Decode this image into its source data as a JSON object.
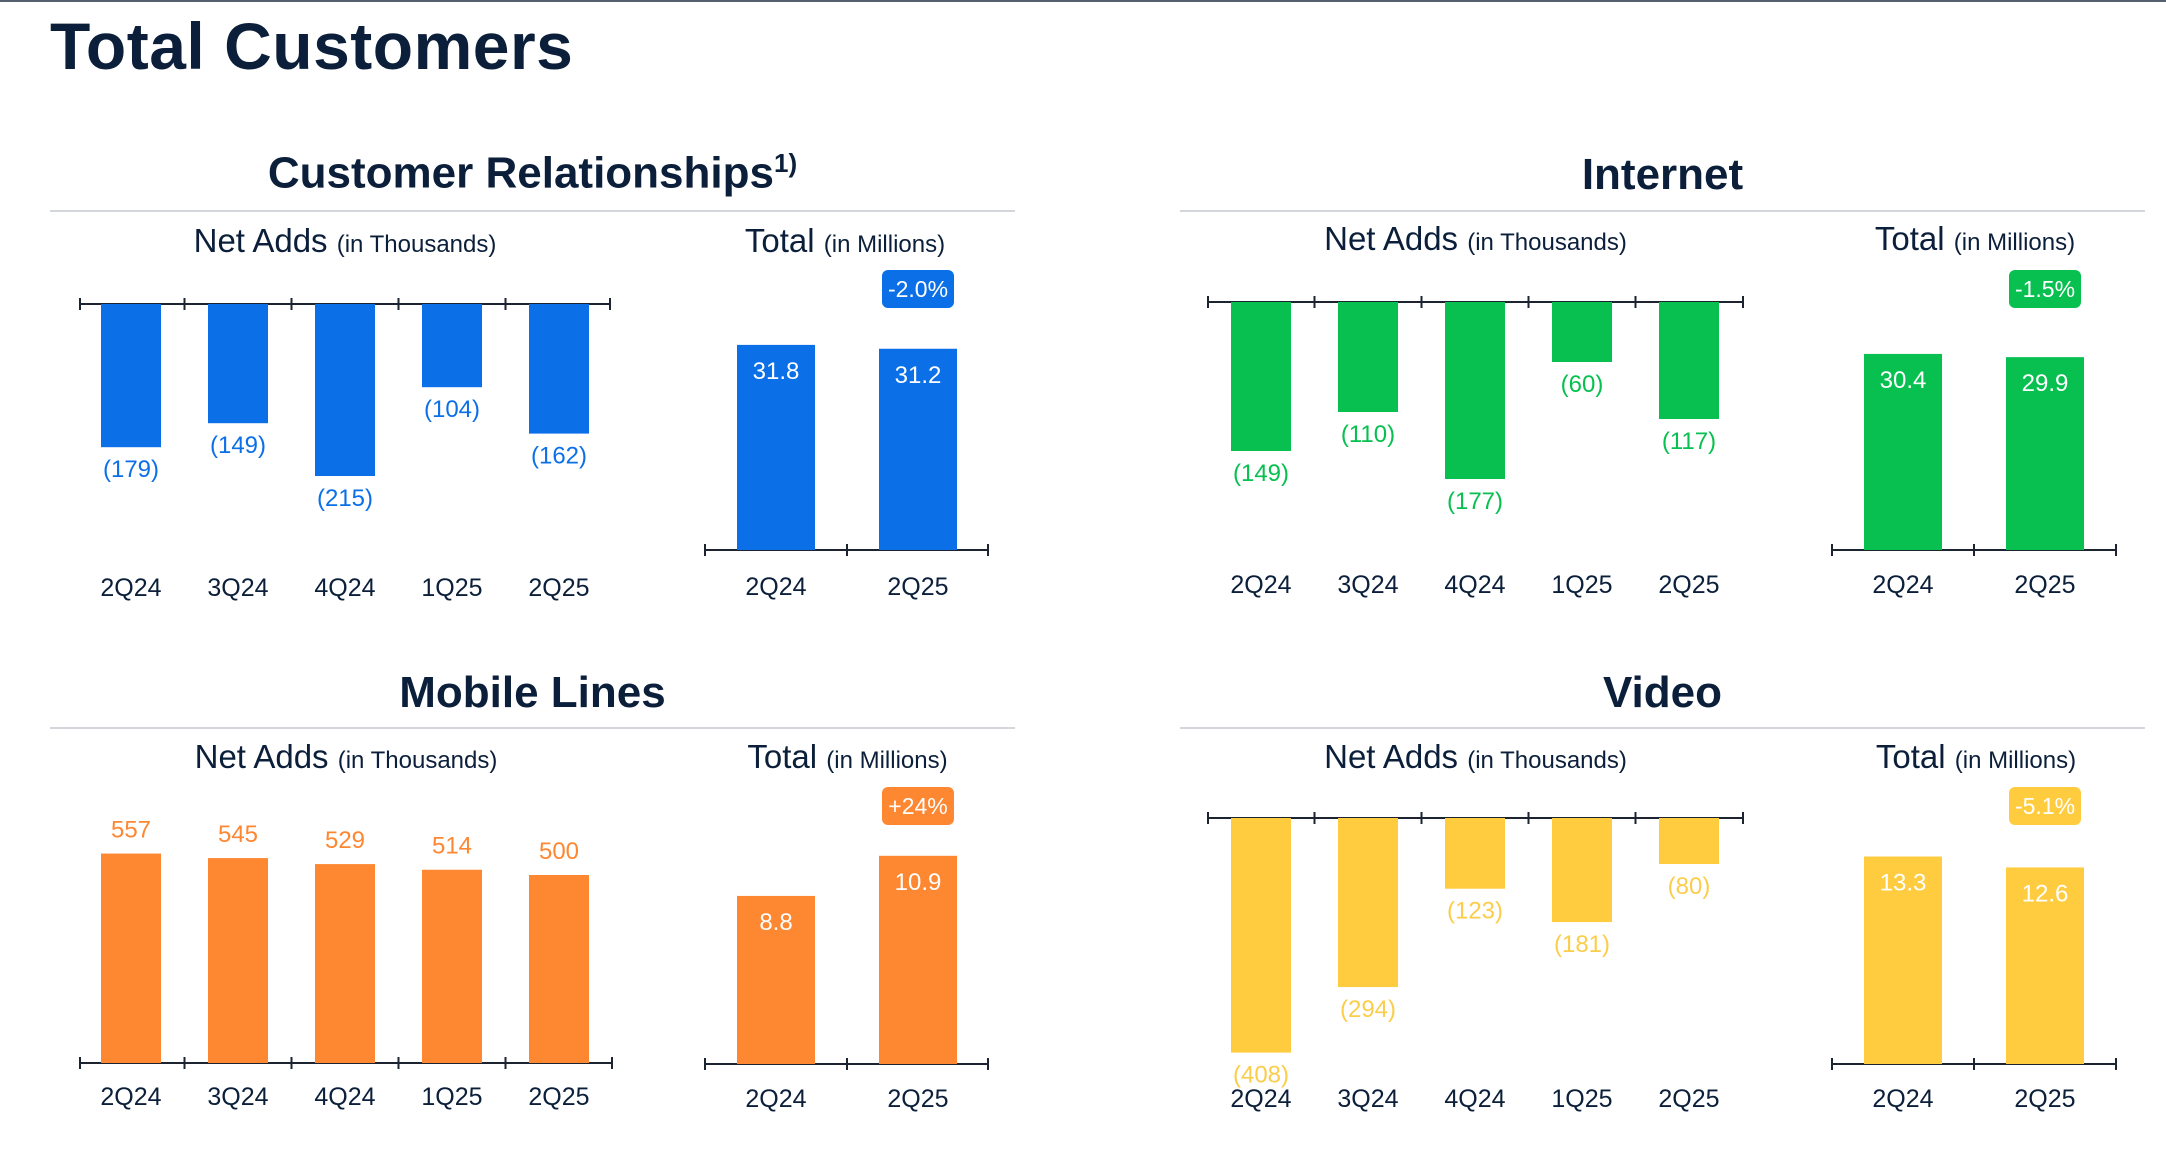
{
  "page": {
    "title": "Total Customers"
  },
  "sections": [
    {
      "id": "customer-relationships",
      "title": "Customer Relationships",
      "title_sup": "1)",
      "net_adds_label": "Net Adds",
      "net_adds_unit": "(in Thousands)",
      "total_label": "Total",
      "total_unit": "(in Millions)"
    },
    {
      "id": "internet",
      "title": "Internet",
      "title_sup": "",
      "net_adds_label": "Net Adds",
      "net_adds_unit": "(in Thousands)",
      "total_label": "Total",
      "total_unit": "(in Millions)"
    },
    {
      "id": "mobile-lines",
      "title": "Mobile Lines",
      "title_sup": "",
      "net_adds_label": "Net Adds",
      "net_adds_unit": "(in Thousands)",
      "total_label": "Total",
      "total_unit": "(in Millions)"
    },
    {
      "id": "video",
      "title": "Video",
      "title_sup": "",
      "net_adds_label": "Net Adds",
      "net_adds_unit": "(in Thousands)",
      "total_label": "Total",
      "total_unit": "(in Millions)"
    }
  ],
  "chart_data": [
    {
      "id": "cr-net-adds",
      "type": "bar",
      "title": "Customer Relationships — Net Adds (in Thousands)",
      "categories": [
        "2Q24",
        "3Q24",
        "4Q24",
        "1Q25",
        "2Q25"
      ],
      "values": [
        -179,
        -149,
        -215,
        -104,
        -162
      ],
      "labels": [
        "(179)",
        "(149)",
        "(215)",
        "(104)",
        "(162)"
      ],
      "ylim": [
        -230,
        0
      ],
      "color": "#0b6fe8",
      "label_color": "#0b6fe8"
    },
    {
      "id": "cr-total",
      "type": "bar",
      "title": "Customer Relationships — Total (in Millions)",
      "categories": [
        "2Q24",
        "2Q25"
      ],
      "values": [
        31.8,
        31.2
      ],
      "labels": [
        "31.8",
        "31.2"
      ],
      "ylim": [
        0,
        38.3
      ],
      "color": "#0b6fe8",
      "change_badge": "-2.0%"
    },
    {
      "id": "internet-net-adds",
      "type": "bar",
      "title": "Internet — Net Adds (in Thousands)",
      "categories": [
        "2Q24",
        "3Q24",
        "4Q24",
        "1Q25",
        "2Q25"
      ],
      "values": [
        -149,
        -110,
        -177,
        -60,
        -117
      ],
      "labels": [
        "(149)",
        "(110)",
        "(177)",
        "(60)",
        "(117)"
      ],
      "ylim": [
        -190,
        0
      ],
      "color": "#07c050",
      "label_color": "#07c050"
    },
    {
      "id": "internet-total",
      "type": "bar",
      "title": "Internet — Total (in Millions)",
      "categories": [
        "2Q24",
        "2Q25"
      ],
      "values": [
        30.4,
        29.9
      ],
      "labels": [
        "30.4",
        "29.9"
      ],
      "ylim": [
        0,
        36.6
      ],
      "color": "#07c050",
      "change_badge": "-1.5%"
    },
    {
      "id": "mobile-net-adds",
      "type": "bar",
      "title": "Mobile Lines — Net Adds (in Thousands)",
      "categories": [
        "2Q24",
        "3Q24",
        "4Q24",
        "1Q25",
        "2Q25"
      ],
      "values": [
        557,
        545,
        529,
        514,
        500
      ],
      "labels": [
        "557",
        "545",
        "529",
        "514",
        "500"
      ],
      "ylim": [
        0,
        690
      ],
      "color": "#fe8732",
      "label_color": "#fe8732"
    },
    {
      "id": "mobile-total",
      "type": "bar",
      "title": "Mobile Lines — Total (in Millions)",
      "categories": [
        "2Q24",
        "2Q25"
      ],
      "values": [
        8.8,
        10.9
      ],
      "labels": [
        "8.8",
        "10.9"
      ],
      "ylim": [
        0,
        13.0
      ],
      "color": "#fe8732",
      "change_badge": "+24%"
    },
    {
      "id": "video-net-adds",
      "type": "bar",
      "title": "Video — Net Adds (in Thousands)",
      "categories": [
        "2Q24",
        "3Q24",
        "4Q24",
        "1Q25",
        "2Q25"
      ],
      "values": [
        -408,
        -294,
        -123,
        -181,
        -80
      ],
      "labels": [
        "(408)",
        "(294)",
        "(123)",
        "(181)",
        "(80)"
      ],
      "ylim": [
        -425,
        0
      ],
      "color": "#ffcc3f",
      "label_color": "#fbcd4a"
    },
    {
      "id": "video-total",
      "type": "bar",
      "title": "Video — Total (in Millions)",
      "categories": [
        "2Q24",
        "2Q25"
      ],
      "values": [
        13.3,
        12.6
      ],
      "labels": [
        "13.3",
        "12.6"
      ],
      "ylim": [
        0,
        16.0
      ],
      "color": "#ffcc3f",
      "change_badge": "-5.1%"
    }
  ]
}
